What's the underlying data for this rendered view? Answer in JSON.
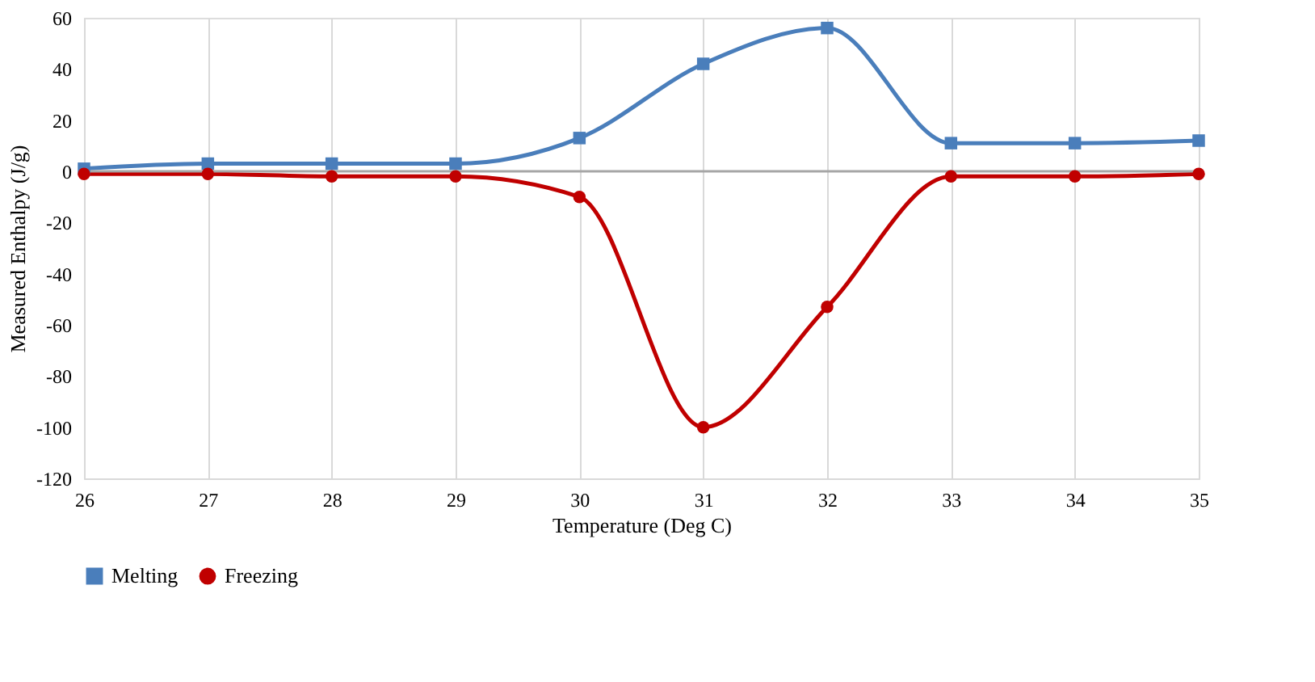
{
  "chart_data": {
    "type": "line",
    "xlabel": "Temperature (Deg C)",
    "ylabel": "Measured Enthalpy (J/g)",
    "x": [
      26,
      27,
      28,
      29,
      30,
      31,
      32,
      33,
      34,
      35
    ],
    "series": [
      {
        "name": "Melting",
        "color": "#4a7ebb",
        "marker": "square",
        "values": [
          1,
          3,
          3,
          3,
          13,
          42,
          56,
          11,
          11,
          12
        ]
      },
      {
        "name": "Freezing",
        "color": "#c00000",
        "marker": "circle",
        "values": [
          -1,
          -1,
          -2,
          -2,
          -10,
          -100,
          -53,
          -2,
          -2,
          -1
        ]
      }
    ],
    "xlim": [
      26,
      35
    ],
    "xticks": [
      26,
      27,
      28,
      29,
      30,
      31,
      32,
      33,
      34,
      35
    ],
    "ylim": [
      -120,
      60
    ],
    "yticks": [
      -120,
      -100,
      -80,
      -60,
      -40,
      -20,
      0,
      20,
      40,
      60
    ],
    "ref_lines": [
      {
        "axis": "y",
        "value": 0,
        "color": "#a6a6a6"
      }
    ],
    "grid": "x",
    "legend": "bottom",
    "line_style": "solid"
  }
}
